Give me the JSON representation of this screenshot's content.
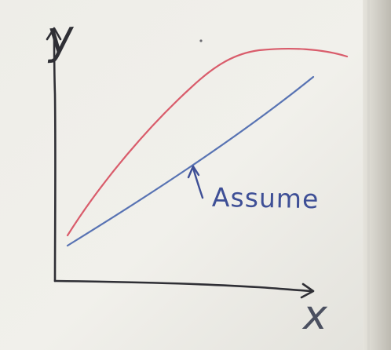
{
  "scene": {
    "description_free": true,
    "board_color": "#efeee9",
    "ink_colors": {
      "axes": "#2f2f35",
      "curve": "#d95c6b",
      "line": "#5873b3",
      "note": "#3e4f96"
    }
  },
  "labels": {
    "y_axis": "y",
    "x_axis": "x",
    "note": "Assume"
  },
  "icons": {
    "note_arrow": "up-arrow-icon"
  }
}
